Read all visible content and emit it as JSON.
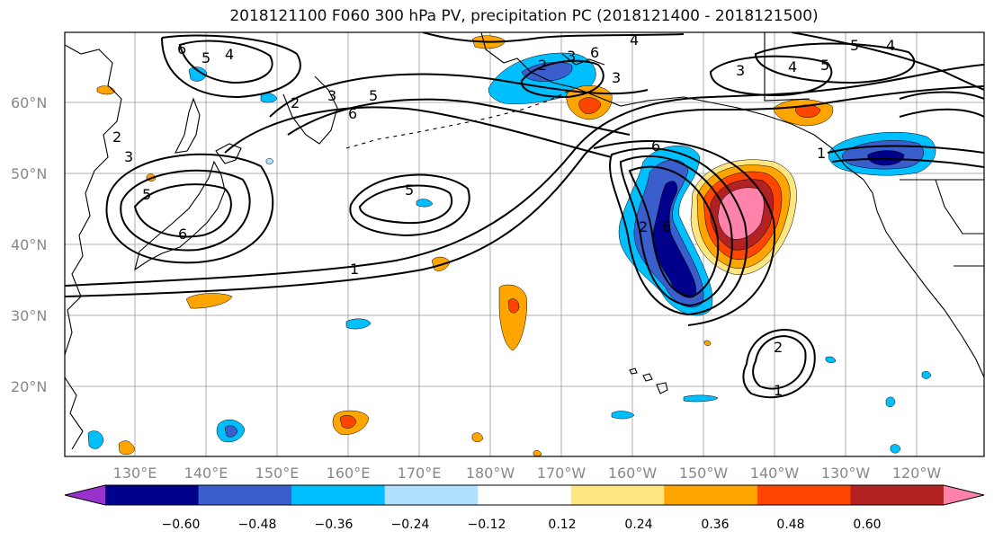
{
  "title": "2018121100 F060 300 hPa PV, precipitation PC (2018121400 - 2018121500)",
  "map": {
    "lat_labels": [
      "60°N",
      "50°N",
      "40°N",
      "30°N",
      "20°N"
    ],
    "lon_labels": [
      "130°E",
      "140°E",
      "150°E",
      "160°E",
      "170°E",
      "180°W",
      "170°W",
      "160°W",
      "150°W",
      "140°W",
      "130°W",
      "120°W"
    ]
  },
  "contour_labels": [
    "6",
    "5",
    "4",
    "2",
    "3",
    "5",
    "6",
    "2",
    "3",
    "5",
    "6",
    "5",
    "1",
    "2",
    "3",
    "6",
    "3",
    "4",
    "5",
    "4",
    "5",
    "3",
    "6",
    "4",
    "6",
    "2",
    "1",
    "2",
    "1"
  ],
  "colorbar": {
    "colors": [
      "#9932cc",
      "#00008b",
      "#3a5fcd",
      "#00bfff",
      "#b0e2ff",
      "#ffffff",
      "#ffe680",
      "#ffa500",
      "#ff4500",
      "#b22222",
      "#ff82ab"
    ],
    "tick_labels": [
      "−0.60",
      "−0.48",
      "−0.36",
      "−0.24",
      "−0.12",
      "0.12",
      "0.24",
      "0.36",
      "0.48",
      "0.60"
    ]
  }
}
